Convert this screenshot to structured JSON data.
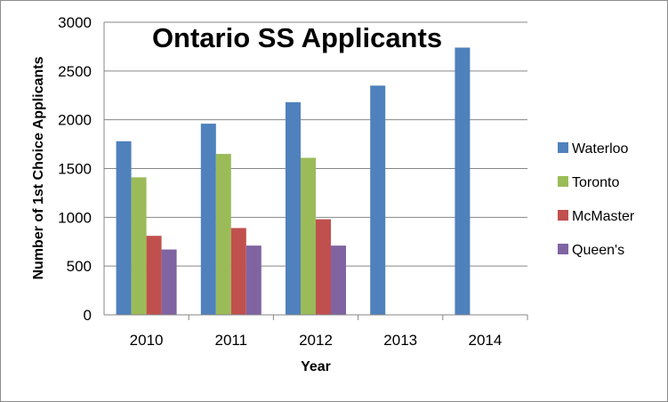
{
  "chart_data": {
    "type": "bar",
    "title": "Ontario SS Applicants",
    "xlabel": "Year",
    "ylabel": "Number of 1st Choice Applicants",
    "categories": [
      "2010",
      "2011",
      "2012",
      "2013",
      "2014"
    ],
    "ylim": [
      0,
      3000
    ],
    "yticks": [
      0,
      500,
      1000,
      1500,
      2000,
      2500,
      3000
    ],
    "grid": true,
    "legend_position": "right",
    "series": [
      {
        "name": "Waterloo",
        "color": "#4f81bd",
        "values": [
          1780,
          1960,
          2180,
          2350,
          2740
        ]
      },
      {
        "name": "Toronto",
        "color": "#9bbb59",
        "values": [
          1410,
          1650,
          1610,
          null,
          null
        ]
      },
      {
        "name": "McMaster",
        "color": "#c0504d",
        "values": [
          810,
          890,
          980,
          null,
          null
        ]
      },
      {
        "name": "Queen's",
        "color": "#8064a2",
        "values": [
          670,
          710,
          710,
          null,
          null
        ]
      }
    ]
  }
}
